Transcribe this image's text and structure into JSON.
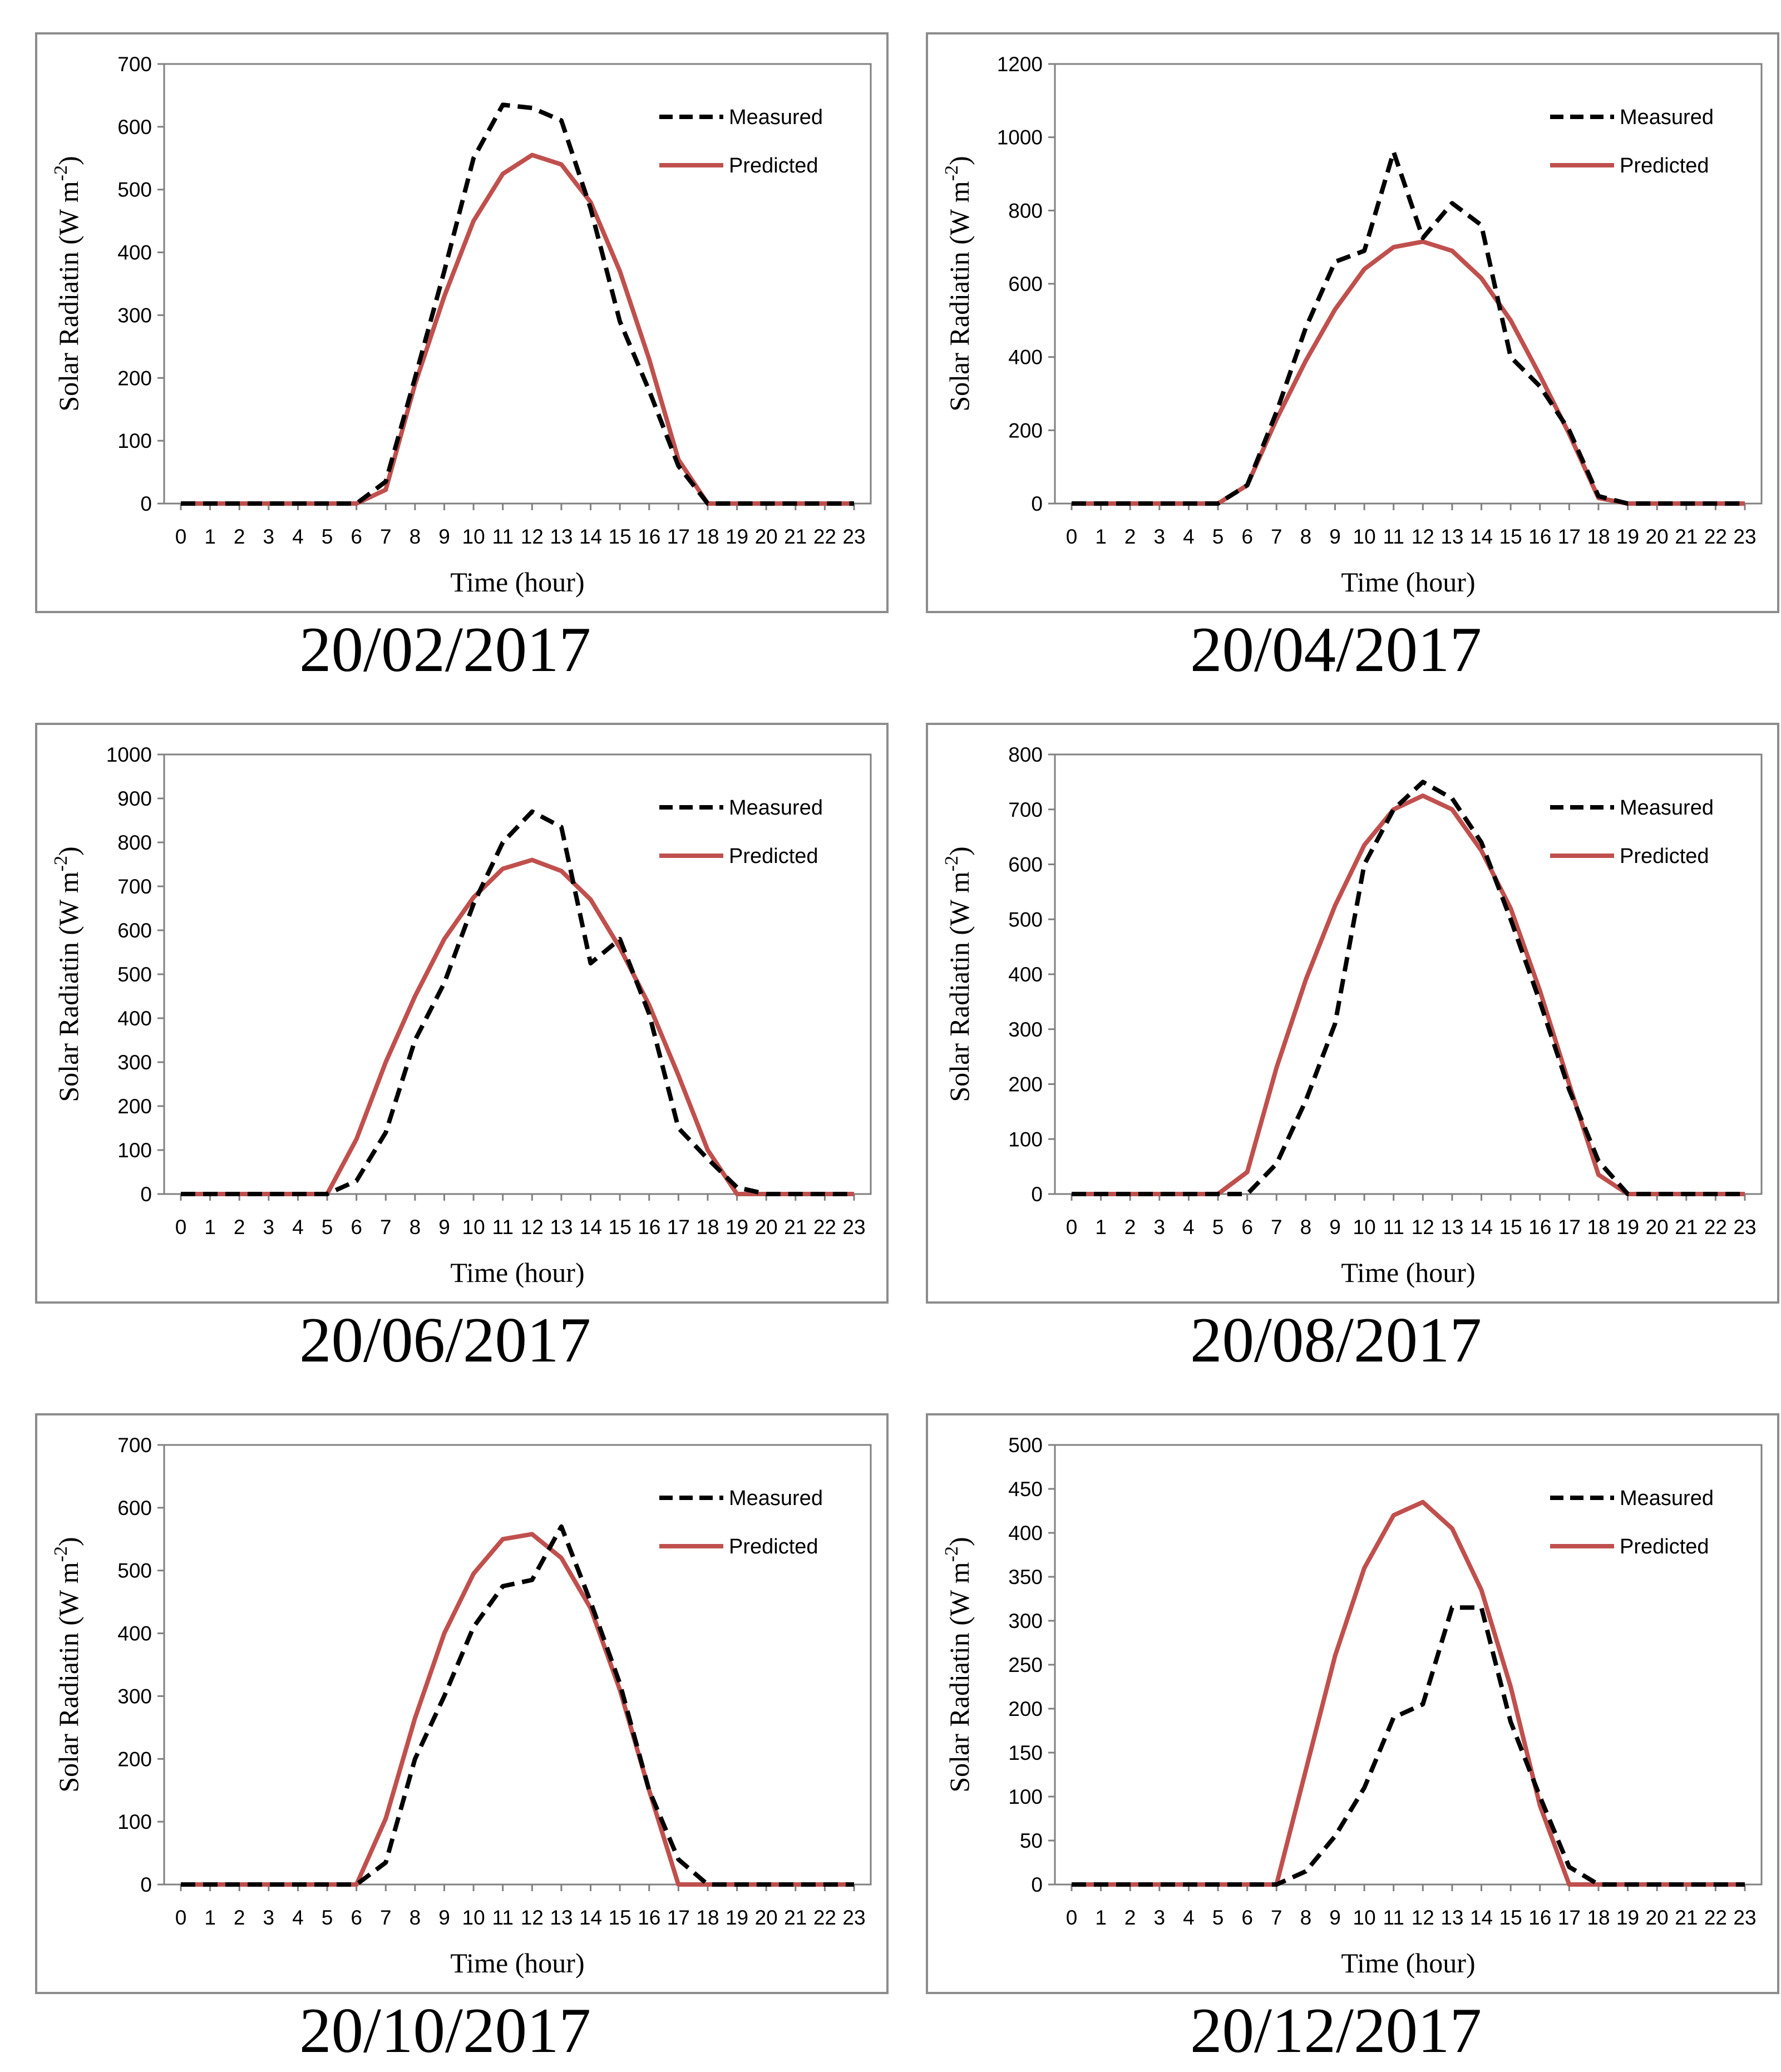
{
  "colors": {
    "measured": "#000000",
    "predicted": "#c0504d",
    "frame": "#8c8c8c",
    "axis": "#808080"
  },
  "chart_data": [
    {
      "type": "line",
      "title": "",
      "caption": "20/02/2017",
      "xlabel": "Time (hour)",
      "ylabel": "Solar Radiatin (W m",
      "ylabel_sup": "-2",
      "ylabel_close": ")",
      "x": [
        "0",
        "1",
        "2",
        "3",
        "4",
        "5",
        "6",
        "7",
        "8",
        "9",
        "10",
        "11",
        "12",
        "13",
        "14",
        "15",
        "16",
        "17",
        "18",
        "19",
        "20",
        "21",
        "22",
        "23"
      ],
      "ylim": [
        0,
        700
      ],
      "yticks": [
        0,
        100,
        200,
        300,
        400,
        500,
        600,
        700
      ],
      "series": [
        {
          "name": "Measured",
          "values": [
            0,
            0,
            0,
            0,
            0,
            0,
            0,
            35,
            200,
            370,
            550,
            635,
            630,
            610,
            470,
            290,
            180,
            60,
            0,
            0,
            0,
            0,
            0,
            0
          ]
        },
        {
          "name": "Predicted",
          "values": [
            0,
            0,
            0,
            0,
            0,
            0,
            0,
            22,
            190,
            330,
            450,
            525,
            555,
            540,
            480,
            370,
            230,
            70,
            0,
            0,
            0,
            0,
            0,
            0
          ]
        }
      ]
    },
    {
      "type": "line",
      "title": "",
      "caption": "20/04/2017",
      "xlabel": "Time (hour)",
      "ylabel": "Solar Radiatin (W m",
      "ylabel_sup": "-2",
      "ylabel_close": ")",
      "x": [
        "0",
        "1",
        "2",
        "3",
        "4",
        "5",
        "6",
        "7",
        "8",
        "9",
        "10",
        "11",
        "12",
        "13",
        "14",
        "15",
        "16",
        "17",
        "18",
        "19",
        "20",
        "21",
        "22",
        "23"
      ],
      "ylim": [
        0,
        1200
      ],
      "yticks": [
        0,
        200,
        400,
        600,
        800,
        1000,
        1200
      ],
      "series": [
        {
          "name": "Measured",
          "values": [
            0,
            0,
            0,
            0,
            0,
            0,
            50,
            250,
            480,
            660,
            690,
            960,
            725,
            820,
            760,
            400,
            320,
            200,
            20,
            0,
            0,
            0,
            0,
            0
          ]
        },
        {
          "name": "Predicted",
          "values": [
            0,
            0,
            0,
            0,
            0,
            0,
            50,
            230,
            390,
            530,
            640,
            700,
            715,
            690,
            615,
            500,
            350,
            190,
            15,
            0,
            0,
            0,
            0,
            0
          ]
        }
      ]
    },
    {
      "type": "line",
      "title": "",
      "caption": "20/06/2017",
      "xlabel": "Time (hour)",
      "ylabel": "Solar Radiatin (W m",
      "ylabel_sup": "-2",
      "ylabel_close": ")",
      "x": [
        "0",
        "1",
        "2",
        "3",
        "4",
        "5",
        "6",
        "7",
        "8",
        "9",
        "10",
        "11",
        "12",
        "13",
        "14",
        "15",
        "16",
        "17",
        "18",
        "19",
        "20",
        "21",
        "22",
        "23"
      ],
      "ylim": [
        0,
        1000
      ],
      "yticks": [
        0,
        100,
        200,
        300,
        400,
        500,
        600,
        700,
        800,
        900,
        1000
      ],
      "series": [
        {
          "name": "Measured",
          "values": [
            0,
            0,
            0,
            0,
            0,
            0,
            30,
            140,
            350,
            480,
            660,
            800,
            870,
            835,
            525,
            580,
            410,
            150,
            80,
            15,
            0,
            0,
            0,
            0
          ]
        },
        {
          "name": "Predicted",
          "values": [
            0,
            0,
            0,
            0,
            0,
            0,
            125,
            300,
            450,
            580,
            675,
            740,
            760,
            735,
            670,
            560,
            430,
            270,
            100,
            0,
            0,
            0,
            0,
            0
          ]
        }
      ]
    },
    {
      "type": "line",
      "title": "",
      "caption": "20/08/2017",
      "xlabel": "Time (hour)",
      "ylabel": "Solar Radiatin (W m",
      "ylabel_sup": "-2",
      "ylabel_close": ")",
      "x": [
        "0",
        "1",
        "2",
        "3",
        "4",
        "5",
        "6",
        "7",
        "8",
        "9",
        "10",
        "11",
        "12",
        "13",
        "14",
        "15",
        "16",
        "17",
        "18",
        "19",
        "20",
        "21",
        "22",
        "23"
      ],
      "ylim": [
        0,
        800
      ],
      "yticks": [
        0,
        100,
        200,
        300,
        400,
        500,
        600,
        700,
        800
      ],
      "series": [
        {
          "name": "Measured",
          "values": [
            0,
            0,
            0,
            0,
            0,
            0,
            0,
            55,
            170,
            310,
            600,
            700,
            750,
            720,
            640,
            500,
            350,
            190,
            60,
            0,
            0,
            0,
            0,
            0
          ]
        },
        {
          "name": "Predicted",
          "values": [
            0,
            0,
            0,
            0,
            0,
            0,
            40,
            230,
            390,
            525,
            635,
            700,
            725,
            700,
            625,
            520,
            370,
            200,
            35,
            0,
            0,
            0,
            0,
            0
          ]
        }
      ]
    },
    {
      "type": "line",
      "title": "",
      "caption": "20/10/2017",
      "xlabel": "Time (hour)",
      "ylabel": "Solar Radiatin (W m",
      "ylabel_sup": "-2",
      "ylabel_close": ")",
      "x": [
        "0",
        "1",
        "2",
        "3",
        "4",
        "5",
        "6",
        "7",
        "8",
        "9",
        "10",
        "11",
        "12",
        "13",
        "14",
        "15",
        "16",
        "17",
        "18",
        "19",
        "20",
        "21",
        "22",
        "23"
      ],
      "ylim": [
        0,
        700
      ],
      "yticks": [
        0,
        100,
        200,
        300,
        400,
        500,
        600,
        700
      ],
      "series": [
        {
          "name": "Measured",
          "values": [
            0,
            0,
            0,
            0,
            0,
            0,
            0,
            35,
            200,
            300,
            410,
            475,
            485,
            570,
            450,
            320,
            150,
            40,
            0,
            0,
            0,
            0,
            0,
            0
          ]
        },
        {
          "name": "Predicted",
          "values": [
            0,
            0,
            0,
            0,
            0,
            0,
            0,
            105,
            265,
            400,
            495,
            550,
            558,
            520,
            440,
            310,
            150,
            0,
            0,
            0,
            0,
            0,
            0,
            0
          ]
        }
      ]
    },
    {
      "type": "line",
      "title": "",
      "caption": "20/12/2017",
      "xlabel": "Time (hour)",
      "ylabel": "Solar Radiatin (W m",
      "ylabel_sup": "-2",
      "ylabel_close": ")",
      "x": [
        "0",
        "1",
        "2",
        "3",
        "4",
        "5",
        "6",
        "7",
        "8",
        "9",
        "10",
        "11",
        "12",
        "13",
        "14",
        "15",
        "16",
        "17",
        "18",
        "19",
        "20",
        "21",
        "22",
        "23"
      ],
      "ylim": [
        0,
        500
      ],
      "yticks": [
        0,
        50,
        100,
        150,
        200,
        250,
        300,
        350,
        400,
        450,
        500
      ],
      "series": [
        {
          "name": "Measured",
          "values": [
            0,
            0,
            0,
            0,
            0,
            0,
            0,
            0,
            15,
            55,
            110,
            190,
            205,
            315,
            315,
            185,
            100,
            20,
            0,
            0,
            0,
            0,
            0,
            0
          ]
        },
        {
          "name": "Predicted",
          "values": [
            0,
            0,
            0,
            0,
            0,
            0,
            0,
            0,
            130,
            260,
            360,
            420,
            435,
            405,
            335,
            225,
            90,
            0,
            0,
            0,
            0,
            0,
            0,
            0
          ]
        }
      ]
    }
  ]
}
